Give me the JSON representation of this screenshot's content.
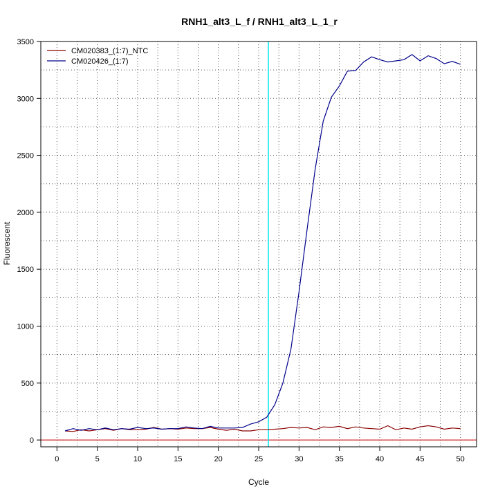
{
  "chart_data": {
    "type": "line",
    "title": "RNH1_alt3_L_f / RNH1_alt3_L_1_r",
    "xlabel": "Cycle",
    "ylabel": "Fluorescent",
    "xlim": [
      -2,
      52
    ],
    "ylim": [
      -60,
      3500
    ],
    "x_ticks": [
      0,
      5,
      10,
      15,
      20,
      25,
      30,
      35,
      40,
      45,
      50
    ],
    "y_ticks": [
      0,
      500,
      1000,
      1500,
      2000,
      2500,
      3000,
      3500
    ],
    "grid": "dotted",
    "legend_position": "top-left",
    "threshold_cycle": 26.2,
    "threshold_color": "#00e5ee",
    "baseline_value": 0,
    "baseline_color": "#cc0000",
    "x": [
      1,
      2,
      3,
      4,
      5,
      6,
      7,
      8,
      9,
      10,
      11,
      12,
      13,
      14,
      15,
      16,
      17,
      18,
      19,
      20,
      21,
      22,
      23,
      24,
      25,
      26,
      27,
      28,
      29,
      30,
      31,
      32,
      33,
      34,
      35,
      36,
      37,
      38,
      39,
      40,
      41,
      42,
      43,
      44,
      45,
      46,
      47,
      48,
      49,
      50
    ],
    "series": [
      {
        "name": "CM020383_(1:7)_NTC",
        "color": "#8b0000",
        "values": [
          80,
          75,
          90,
          80,
          90,
          100,
          85,
          100,
          90,
          90,
          95,
          110,
          95,
          100,
          95,
          105,
          100,
          100,
          110,
          95,
          85,
          95,
          80,
          80,
          90,
          90,
          95,
          100,
          110,
          105,
          110,
          90,
          115,
          110,
          120,
          100,
          115,
          105,
          100,
          95,
          125,
          90,
          105,
          95,
          115,
          125,
          115,
          95,
          105,
          100
        ]
      },
      {
        "name": "CM020426_(1:7)",
        "color": "#00008b",
        "values": [
          80,
          100,
          85,
          100,
          90,
          105,
          90,
          100,
          95,
          110,
          100,
          105,
          95,
          100,
          100,
          115,
          105,
          100,
          120,
          105,
          105,
          105,
          110,
          140,
          160,
          200,
          310,
          500,
          800,
          1300,
          1850,
          2380,
          2800,
          3010,
          3110,
          3240,
          3245,
          3320,
          3365,
          3340,
          3320,
          3330,
          3340,
          3385,
          3330,
          3375,
          3350,
          3305,
          3325,
          3300
        ]
      }
    ]
  }
}
